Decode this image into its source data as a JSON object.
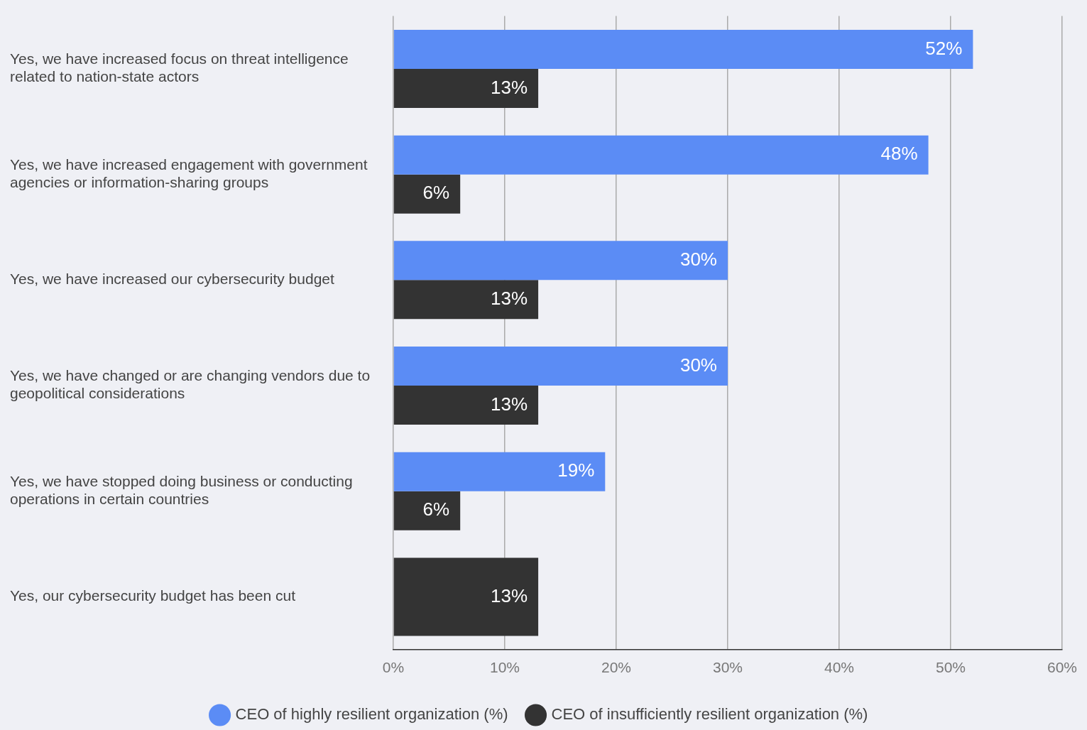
{
  "chart_data": {
    "type": "bar",
    "orientation": "horizontal",
    "categories": [
      "Yes, we have increased focus on threat intelligence related to nation-state actors",
      "Yes, we have increased engagement with government agencies or information-sharing groups",
      "Yes, we have increased our cybersecurity budget",
      "Yes, we have changed or are changing vendors due to geopolitical considerations",
      "Yes, we have stopped doing business or conducting operations in certain countries",
      "Yes, our cybersecurity budget has been cut"
    ],
    "series": [
      {
        "name": "CEO of highly resilient organization (%)",
        "color": "#5b8cf5",
        "values": [
          52,
          48,
          30,
          30,
          19,
          null
        ],
        "value_labels": [
          "52%",
          "48%",
          "30%",
          "30%",
          "19%",
          null
        ]
      },
      {
        "name": "CEO of insufficiently resilient organization (%)",
        "color": "#333333",
        "values": [
          13,
          6,
          13,
          13,
          6,
          13
        ],
        "value_labels": [
          "13%",
          "6%",
          "13%",
          "13%",
          "6%",
          "13%"
        ]
      }
    ],
    "xlim": [
      0,
      60
    ],
    "xticks": [
      {
        "value": 0,
        "label": "0%"
      },
      {
        "value": 10,
        "label": "10%"
      },
      {
        "value": 20,
        "label": "20%"
      },
      {
        "value": 30,
        "label": "30%"
      },
      {
        "value": 40,
        "label": "40%"
      },
      {
        "value": 50,
        "label": "50%"
      },
      {
        "value": 60,
        "label": "60%"
      }
    ],
    "grid": "x",
    "legend": "bottom"
  }
}
